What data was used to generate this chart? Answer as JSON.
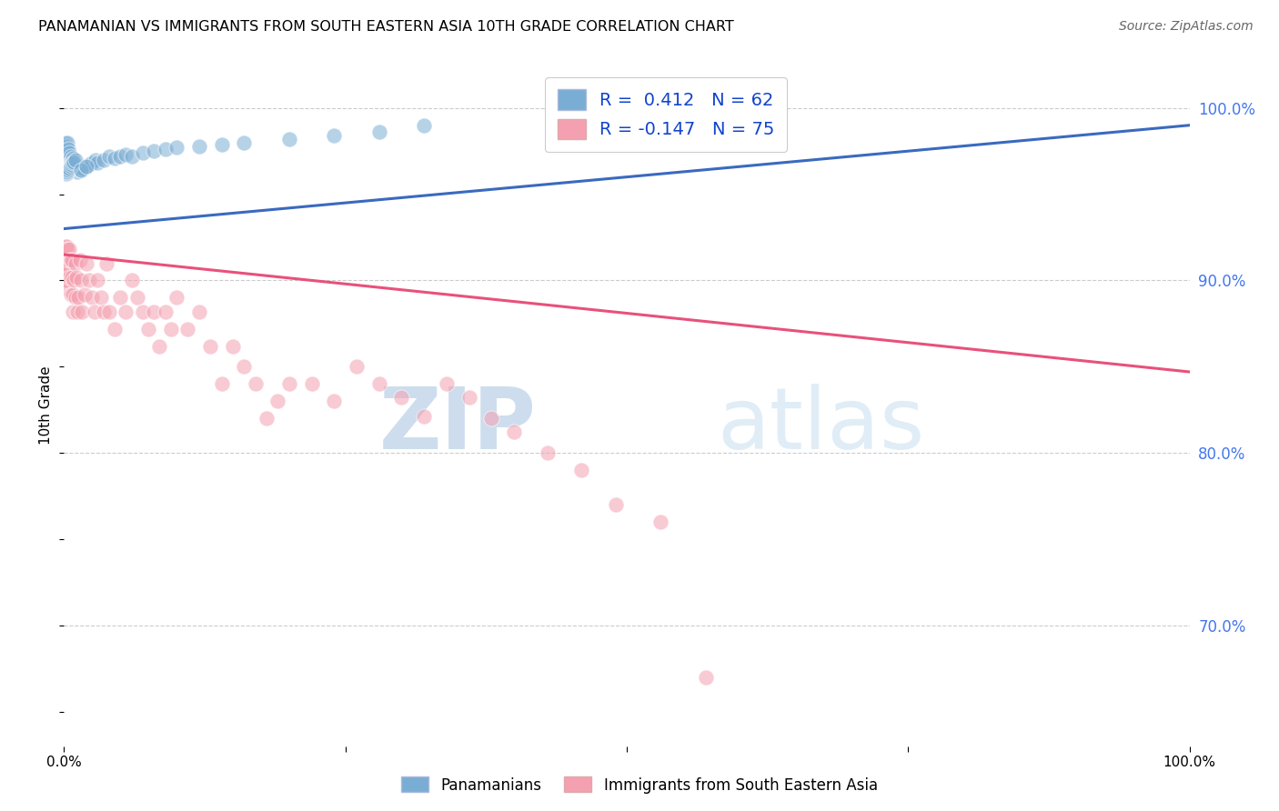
{
  "title": "PANAMANIAN VS IMMIGRANTS FROM SOUTH EASTERN ASIA 10TH GRADE CORRELATION CHART",
  "source": "Source: ZipAtlas.com",
  "ylabel": "10th Grade",
  "watermark_zip": "ZIP",
  "watermark_atlas": "atlas",
  "blue_R": 0.412,
  "blue_N": 62,
  "pink_R": -0.147,
  "pink_N": 75,
  "ytick_labels": [
    "100.0%",
    "90.0%",
    "80.0%",
    "70.0%"
  ],
  "ytick_values": [
    1.0,
    0.9,
    0.8,
    0.7
  ],
  "legend_label_blue": "Panamanians",
  "legend_label_pink": "Immigrants from South Eastern Asia",
  "blue_color": "#7aadd4",
  "pink_color": "#f4a0b0",
  "blue_line_color": "#3a6abf",
  "pink_line_color": "#e8517a",
  "blue_scatter_x": [
    0.001,
    0.001,
    0.001,
    0.002,
    0.002,
    0.002,
    0.003,
    0.003,
    0.003,
    0.003,
    0.004,
    0.004,
    0.004,
    0.005,
    0.005,
    0.005,
    0.006,
    0.006,
    0.007,
    0.007,
    0.008,
    0.008,
    0.009,
    0.01,
    0.011,
    0.012,
    0.013,
    0.015,
    0.017,
    0.02,
    0.022,
    0.025,
    0.028,
    0.03,
    0.035,
    0.04,
    0.045,
    0.05,
    0.055,
    0.06,
    0.07,
    0.08,
    0.09,
    0.1,
    0.12,
    0.14,
    0.16,
    0.2,
    0.24,
    0.28,
    0.32,
    0.002,
    0.003,
    0.004,
    0.005,
    0.006,
    0.007,
    0.008,
    0.009,
    0.01,
    0.015,
    0.02
  ],
  "blue_scatter_y": [
    0.97,
    0.975,
    0.98,
    0.968,
    0.972,
    0.978,
    0.965,
    0.97,
    0.975,
    0.98,
    0.968,
    0.972,
    0.976,
    0.966,
    0.97,
    0.974,
    0.968,
    0.972,
    0.966,
    0.97,
    0.967,
    0.971,
    0.968,
    0.965,
    0.966,
    0.963,
    0.965,
    0.964,
    0.965,
    0.966,
    0.967,
    0.968,
    0.97,
    0.968,
    0.97,
    0.972,
    0.971,
    0.972,
    0.973,
    0.972,
    0.974,
    0.975,
    0.976,
    0.977,
    0.978,
    0.979,
    0.98,
    0.982,
    0.984,
    0.986,
    0.99,
    0.962,
    0.963,
    0.964,
    0.965,
    0.966,
    0.967,
    0.968,
    0.969,
    0.97,
    0.964,
    0.966
  ],
  "pink_scatter_x": [
    0.001,
    0.001,
    0.001,
    0.002,
    0.002,
    0.002,
    0.003,
    0.003,
    0.003,
    0.004,
    0.004,
    0.005,
    0.005,
    0.006,
    0.006,
    0.007,
    0.007,
    0.008,
    0.008,
    0.009,
    0.01,
    0.01,
    0.011,
    0.012,
    0.013,
    0.014,
    0.015,
    0.016,
    0.018,
    0.02,
    0.022,
    0.025,
    0.027,
    0.03,
    0.033,
    0.035,
    0.038,
    0.04,
    0.045,
    0.05,
    0.055,
    0.06,
    0.065,
    0.07,
    0.075,
    0.08,
    0.085,
    0.09,
    0.095,
    0.1,
    0.11,
    0.12,
    0.13,
    0.14,
    0.15,
    0.16,
    0.17,
    0.18,
    0.19,
    0.2,
    0.22,
    0.24,
    0.26,
    0.28,
    0.3,
    0.32,
    0.34,
    0.36,
    0.38,
    0.4,
    0.43,
    0.46,
    0.49,
    0.53,
    0.57
  ],
  "pink_scatter_y": [
    0.92,
    0.91,
    0.9,
    0.92,
    0.91,
    0.9,
    0.918,
    0.908,
    0.895,
    0.906,
    0.912,
    0.918,
    0.902,
    0.912,
    0.892,
    0.902,
    0.912,
    0.892,
    0.882,
    0.9,
    0.91,
    0.89,
    0.902,
    0.882,
    0.89,
    0.912,
    0.9,
    0.882,
    0.892,
    0.91,
    0.9,
    0.89,
    0.882,
    0.9,
    0.89,
    0.882,
    0.91,
    0.882,
    0.872,
    0.89,
    0.882,
    0.9,
    0.89,
    0.882,
    0.872,
    0.882,
    0.862,
    0.882,
    0.872,
    0.89,
    0.872,
    0.882,
    0.862,
    0.84,
    0.862,
    0.85,
    0.84,
    0.82,
    0.83,
    0.84,
    0.84,
    0.83,
    0.85,
    0.84,
    0.832,
    0.821,
    0.84,
    0.832,
    0.82,
    0.812,
    0.8,
    0.79,
    0.77,
    0.76,
    0.67
  ],
  "xlim": [
    0.0,
    1.0
  ],
  "ylim": [
    0.63,
    1.025
  ],
  "blue_line_x0": 0.0,
  "blue_line_x1": 1.0,
  "blue_line_y0": 0.93,
  "blue_line_y1": 0.99,
  "pink_line_x0": 0.0,
  "pink_line_x1": 1.0,
  "pink_line_y0": 0.915,
  "pink_line_y1": 0.847
}
